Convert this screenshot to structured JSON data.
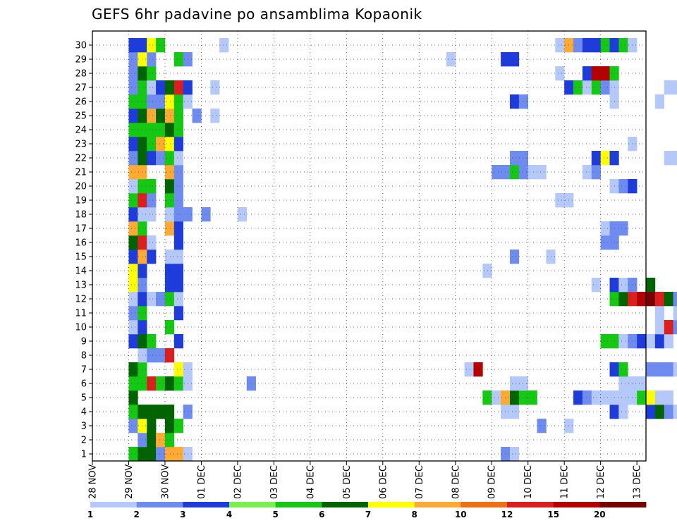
{
  "chart_data": {
    "type": "heatmap",
    "title": "GEFS 6hr padavine po ansamblima Kopaonik",
    "members": [
      1,
      2,
      3,
      4,
      5,
      6,
      7,
      8,
      9,
      10,
      11,
      12,
      13,
      14,
      15,
      16,
      17,
      18,
      19,
      20,
      21,
      22,
      23,
      24,
      25,
      26,
      27,
      28,
      29,
      30
    ],
    "x_tick_labels": [
      "28 NOV",
      "29 NOV",
      "30 NOV",
      "01 DEC",
      "02 DEC",
      "03 DEC",
      "04 DEC",
      "05 DEC",
      "06 DEC",
      "07 DEC",
      "08 DEC",
      "09 DEC",
      "10 DEC",
      "11 DEC",
      "12 DEC",
      "13 DEC"
    ],
    "x_range_hours": [
      0,
      366
    ],
    "time_step_hours": 6,
    "colorbar": {
      "labels": [
        "1",
        "2",
        "3",
        "4",
        "5",
        "6",
        "7",
        "8",
        "10",
        "12",
        "15",
        "20"
      ],
      "colors": [
        "#b4c8fa",
        "#6e8cf0",
        "#1e3cdc",
        "#78f050",
        "#14c814",
        "#006400",
        "#ffff00",
        "#ffaa32",
        "#f06e14",
        "#dc1e1e",
        "#b40000",
        "#780000"
      ]
    },
    "cells": [
      [
        1,
        24,
        5
      ],
      [
        1,
        30,
        6
      ],
      [
        1,
        36,
        6
      ],
      [
        1,
        42,
        2
      ],
      [
        1,
        48,
        8
      ],
      [
        1,
        54,
        8
      ],
      [
        1,
        60,
        1
      ],
      [
        1,
        270,
        2
      ],
      [
        1,
        276,
        1
      ],
      [
        2,
        30,
        2
      ],
      [
        2,
        36,
        6
      ],
      [
        2,
        42,
        8
      ],
      [
        2,
        48,
        5
      ],
      [
        3,
        24,
        2
      ],
      [
        3,
        30,
        7
      ],
      [
        3,
        36,
        6
      ],
      [
        3,
        48,
        6
      ],
      [
        3,
        54,
        5
      ],
      [
        3,
        294,
        2
      ],
      [
        3,
        312,
        1
      ],
      [
        3,
        402,
        5
      ],
      [
        3,
        408,
        2
      ],
      [
        3,
        414,
        6
      ],
      [
        3,
        420,
        2
      ],
      [
        4,
        24,
        5
      ],
      [
        4,
        30,
        6
      ],
      [
        4,
        36,
        6
      ],
      [
        4,
        42,
        6
      ],
      [
        4,
        48,
        6
      ],
      [
        4,
        60,
        2
      ],
      [
        4,
        270,
        1
      ],
      [
        4,
        276,
        1
      ],
      [
        4,
        342,
        3
      ],
      [
        4,
        348,
        1
      ],
      [
        4,
        366,
        3
      ],
      [
        4,
        372,
        6
      ],
      [
        4,
        378,
        2
      ],
      [
        4,
        384,
        1
      ],
      [
        5,
        24,
        6
      ],
      [
        5,
        258,
        5
      ],
      [
        5,
        264,
        1
      ],
      [
        5,
        270,
        8
      ],
      [
        5,
        276,
        6
      ],
      [
        5,
        282,
        5
      ],
      [
        5,
        288,
        5
      ],
      [
        5,
        318,
        3
      ],
      [
        5,
        324,
        2
      ],
      [
        5,
        330,
        1
      ],
      [
        5,
        336,
        1
      ],
      [
        5,
        342,
        1
      ],
      [
        5,
        348,
        1
      ],
      [
        5,
        354,
        1
      ],
      [
        5,
        360,
        5
      ],
      [
        5,
        366,
        7
      ],
      [
        5,
        372,
        1
      ],
      [
        5,
        378,
        1
      ],
      [
        6,
        24,
        5
      ],
      [
        6,
        30,
        5
      ],
      [
        6,
        36,
        10
      ],
      [
        6,
        42,
        5
      ],
      [
        6,
        48,
        6
      ],
      [
        6,
        54,
        5
      ],
      [
        6,
        60,
        1
      ],
      [
        6,
        102,
        2
      ],
      [
        6,
        276,
        1
      ],
      [
        6,
        282,
        1
      ],
      [
        6,
        348,
        1
      ],
      [
        6,
        354,
        1
      ],
      [
        6,
        360,
        1
      ],
      [
        6,
        402,
        2
      ],
      [
        6,
        408,
        2
      ],
      [
        6,
        414,
        1
      ],
      [
        6,
        420,
        1
      ],
      [
        7,
        24,
        6
      ],
      [
        7,
        30,
        5
      ],
      [
        7,
        54,
        7
      ],
      [
        7,
        60,
        1
      ],
      [
        7,
        246,
        1
      ],
      [
        7,
        252,
        11
      ],
      [
        7,
        342,
        3
      ],
      [
        7,
        348,
        5
      ],
      [
        7,
        366,
        2
      ],
      [
        7,
        372,
        2
      ],
      [
        7,
        378,
        2
      ],
      [
        7,
        384,
        1
      ],
      [
        8,
        30,
        1
      ],
      [
        8,
        36,
        2
      ],
      [
        8,
        42,
        2
      ],
      [
        8,
        48,
        10
      ],
      [
        9,
        24,
        3
      ],
      [
        9,
        30,
        6
      ],
      [
        9,
        36,
        5
      ],
      [
        9,
        54,
        3
      ],
      [
        9,
        336,
        5
      ],
      [
        9,
        342,
        5
      ],
      [
        9,
        348,
        1
      ],
      [
        9,
        354,
        2
      ],
      [
        9,
        360,
        3
      ],
      [
        9,
        366,
        1
      ],
      [
        9,
        372,
        3
      ],
      [
        9,
        378,
        1
      ],
      [
        9,
        390,
        1
      ],
      [
        9,
        420,
        1
      ],
      [
        10,
        24,
        1
      ],
      [
        10,
        30,
        3
      ],
      [
        10,
        48,
        5
      ],
      [
        10,
        372,
        1
      ],
      [
        10,
        378,
        10
      ],
      [
        10,
        384,
        2
      ],
      [
        11,
        24,
        2
      ],
      [
        11,
        30,
        5
      ],
      [
        11,
        54,
        3
      ],
      [
        11,
        372,
        1
      ],
      [
        11,
        384,
        1
      ],
      [
        11,
        402,
        3
      ],
      [
        11,
        408,
        1
      ],
      [
        11,
        414,
        1
      ],
      [
        11,
        420,
        1
      ],
      [
        12,
        24,
        1
      ],
      [
        12,
        30,
        3
      ],
      [
        12,
        36,
        1
      ],
      [
        12,
        42,
        2
      ],
      [
        12,
        48,
        5
      ],
      [
        12,
        54,
        1
      ],
      [
        12,
        342,
        5
      ],
      [
        12,
        348,
        6
      ],
      [
        12,
        354,
        10
      ],
      [
        12,
        360,
        11
      ],
      [
        12,
        366,
        12
      ],
      [
        12,
        372,
        10
      ],
      [
        12,
        378,
        6
      ],
      [
        12,
        384,
        2
      ],
      [
        12,
        390,
        1
      ],
      [
        12,
        402,
        1
      ],
      [
        12,
        408,
        1
      ],
      [
        12,
        414,
        1
      ],
      [
        13,
        24,
        7
      ],
      [
        13,
        30,
        2
      ],
      [
        13,
        48,
        3
      ],
      [
        13,
        54,
        3
      ],
      [
        13,
        330,
        1
      ],
      [
        13,
        342,
        3
      ],
      [
        13,
        348,
        1
      ],
      [
        13,
        354,
        2
      ],
      [
        13,
        366,
        6
      ],
      [
        14,
        24,
        7
      ],
      [
        14,
        30,
        3
      ],
      [
        14,
        48,
        3
      ],
      [
        14,
        54,
        3
      ],
      [
        14,
        258,
        1
      ],
      [
        15,
        24,
        3
      ],
      [
        15,
        30,
        8
      ],
      [
        15,
        36,
        3
      ],
      [
        15,
        48,
        1
      ],
      [
        15,
        54,
        1
      ],
      [
        15,
        276,
        2
      ],
      [
        15,
        300,
        1
      ],
      [
        16,
        24,
        6
      ],
      [
        16,
        30,
        10
      ],
      [
        16,
        36,
        1
      ],
      [
        16,
        54,
        3
      ],
      [
        16,
        336,
        2
      ],
      [
        16,
        342,
        2
      ],
      [
        17,
        24,
        8
      ],
      [
        17,
        30,
        5
      ],
      [
        17,
        48,
        8
      ],
      [
        17,
        54,
        3
      ],
      [
        17,
        336,
        1
      ],
      [
        17,
        342,
        2
      ],
      [
        17,
        348,
        2
      ],
      [
        18,
        24,
        3
      ],
      [
        18,
        30,
        1
      ],
      [
        18,
        36,
        1
      ],
      [
        18,
        48,
        1
      ],
      [
        18,
        54,
        2
      ],
      [
        18,
        60,
        2
      ],
      [
        18,
        72,
        2
      ],
      [
        18,
        96,
        1
      ],
      [
        19,
        24,
        5
      ],
      [
        19,
        30,
        10
      ],
      [
        19,
        36,
        2
      ],
      [
        19,
        48,
        5
      ],
      [
        19,
        54,
        2
      ],
      [
        19,
        306,
        1
      ],
      [
        19,
        312,
        1
      ],
      [
        19,
        414,
        1
      ],
      [
        19,
        420,
        2
      ],
      [
        20,
        24,
        1
      ],
      [
        20,
        30,
        5
      ],
      [
        20,
        36,
        5
      ],
      [
        20,
        48,
        6
      ],
      [
        20,
        54,
        2
      ],
      [
        20,
        342,
        1
      ],
      [
        20,
        348,
        2
      ],
      [
        20,
        354,
        3
      ],
      [
        21,
        24,
        8
      ],
      [
        21,
        30,
        8
      ],
      [
        21,
        48,
        8
      ],
      [
        21,
        54,
        2
      ],
      [
        21,
        264,
        2
      ],
      [
        21,
        270,
        2
      ],
      [
        21,
        276,
        5
      ],
      [
        21,
        282,
        2
      ],
      [
        21,
        288,
        1
      ],
      [
        21,
        294,
        1
      ],
      [
        21,
        324,
        1
      ],
      [
        21,
        330,
        2
      ],
      [
        22,
        24,
        2
      ],
      [
        22,
        30,
        6
      ],
      [
        22,
        36,
        3
      ],
      [
        22,
        42,
        2
      ],
      [
        22,
        48,
        5
      ],
      [
        22,
        54,
        1
      ],
      [
        22,
        276,
        2
      ],
      [
        22,
        282,
        2
      ],
      [
        22,
        330,
        3
      ],
      [
        22,
        336,
        7
      ],
      [
        22,
        342,
        3
      ],
      [
        22,
        378,
        1
      ],
      [
        22,
        384,
        1
      ],
      [
        23,
        24,
        3
      ],
      [
        23,
        30,
        6
      ],
      [
        23,
        36,
        5
      ],
      [
        23,
        42,
        8
      ],
      [
        23,
        48,
        7
      ],
      [
        23,
        54,
        3
      ],
      [
        23,
        354,
        1
      ],
      [
        23,
        408,
        5
      ],
      [
        23,
        414,
        8
      ],
      [
        24,
        24,
        5
      ],
      [
        24,
        30,
        5
      ],
      [
        24,
        36,
        5
      ],
      [
        24,
        42,
        5
      ],
      [
        24,
        48,
        6
      ],
      [
        24,
        54,
        5
      ],
      [
        24,
        402,
        1
      ],
      [
        24,
        408,
        5
      ],
      [
        24,
        414,
        1
      ],
      [
        25,
        24,
        3
      ],
      [
        25,
        30,
        6
      ],
      [
        25,
        36,
        8
      ],
      [
        25,
        42,
        6
      ],
      [
        25,
        48,
        8
      ],
      [
        25,
        54,
        5
      ],
      [
        25,
        66,
        2
      ],
      [
        25,
        78,
        1
      ],
      [
        25,
        390,
        5
      ],
      [
        26,
        24,
        5
      ],
      [
        26,
        30,
        5
      ],
      [
        26,
        36,
        2
      ],
      [
        26,
        42,
        2
      ],
      [
        26,
        48,
        7
      ],
      [
        26,
        54,
        5
      ],
      [
        26,
        60,
        1
      ],
      [
        26,
        276,
        3
      ],
      [
        26,
        282,
        2
      ],
      [
        26,
        342,
        1
      ],
      [
        26,
        372,
        1
      ],
      [
        27,
        24,
        2
      ],
      [
        27,
        30,
        5
      ],
      [
        27,
        36,
        1
      ],
      [
        27,
        42,
        3
      ],
      [
        27,
        48,
        6
      ],
      [
        27,
        54,
        10
      ],
      [
        27,
        60,
        3
      ],
      [
        27,
        78,
        1
      ],
      [
        27,
        312,
        3
      ],
      [
        27,
        318,
        5
      ],
      [
        27,
        324,
        1
      ],
      [
        27,
        330,
        5
      ],
      [
        27,
        336,
        2
      ],
      [
        27,
        342,
        1
      ],
      [
        27,
        378,
        1
      ],
      [
        27,
        384,
        1
      ],
      [
        28,
        24,
        2
      ],
      [
        28,
        30,
        6
      ],
      [
        28,
        36,
        5
      ],
      [
        28,
        306,
        1
      ],
      [
        28,
        324,
        3
      ],
      [
        28,
        330,
        11
      ],
      [
        28,
        336,
        11
      ],
      [
        28,
        342,
        5
      ],
      [
        29,
        24,
        2
      ],
      [
        29,
        30,
        7
      ],
      [
        29,
        36,
        2
      ],
      [
        29,
        54,
        5
      ],
      [
        29,
        60,
        2
      ],
      [
        29,
        234,
        1
      ],
      [
        29,
        270,
        3
      ],
      [
        29,
        276,
        3
      ],
      [
        30,
        24,
        3
      ],
      [
        30,
        30,
        3
      ],
      [
        30,
        36,
        7
      ],
      [
        30,
        42,
        5
      ],
      [
        30,
        84,
        1
      ],
      [
        30,
        306,
        1
      ],
      [
        30,
        312,
        8
      ],
      [
        30,
        318,
        2
      ],
      [
        30,
        324,
        3
      ],
      [
        30,
        330,
        3
      ],
      [
        30,
        336,
        5
      ],
      [
        30,
        342,
        3
      ],
      [
        30,
        348,
        5
      ],
      [
        30,
        354,
        1
      ],
      [
        30,
        402,
        2
      ],
      [
        30,
        408,
        5
      ],
      [
        30,
        420,
        2
      ]
    ]
  }
}
